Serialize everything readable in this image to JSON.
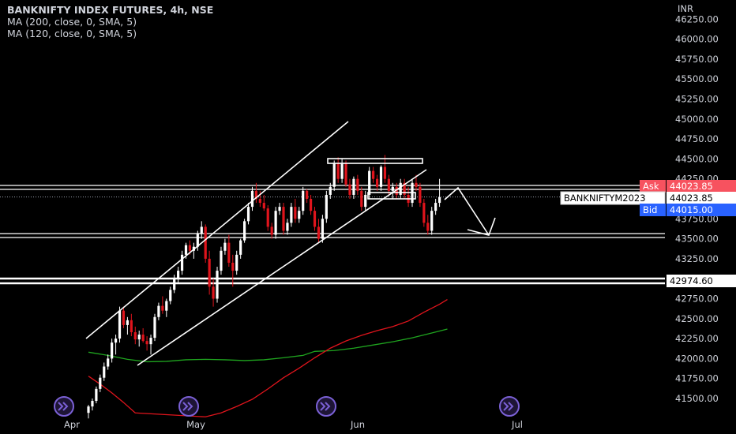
{
  "legend": {
    "title": "BANKNIFTY INDEX FUTURES, 4h, NSE",
    "ma1": "MA (200, close, 0, SMA, 5)",
    "ma2": "MA (120, close, 0, SMA, 5)"
  },
  "currency": "INR",
  "colors": {
    "background": "#000000",
    "up": "#ffffff",
    "down": "#e0141c",
    "ma200": "#1fa51f",
    "ma120": "#e0141c",
    "drawing": "#ffffff",
    "ask": "#f7525f",
    "bid": "#2962ff",
    "event": "#7b61d6"
  },
  "chart_data": {
    "type": "candlestick",
    "y_ticks": [
      "46250.00",
      "46000.00",
      "45750.00",
      "45500.00",
      "45250.00",
      "45000.00",
      "44750.00",
      "44500.00",
      "44250.00",
      "43750.00",
      "43500.00",
      "43250.00",
      "42750.00",
      "42500.00",
      "42250.00",
      "42000.00",
      "41750.00",
      "41500.00"
    ],
    "x_ticks": [
      "Apr",
      "May",
      "Jun",
      "Jul"
    ],
    "ylim": [
      41275,
      46325
    ],
    "price_tags": {
      "ask_label": "Ask",
      "ask_value": "44023.85",
      "ask_price": 44023.85,
      "symbol": "BANKNIFTYM2023",
      "last_value": "44023.85",
      "last_price": 44023.85,
      "bid_label": "Bid",
      "bid_value": "44015.00",
      "bid_price": 44015.0,
      "level_value": "42974.60",
      "level_price": 42974.6
    },
    "candles": [
      [
        41320,
        41420,
        41250,
        41400
      ],
      [
        41400,
        41500,
        41350,
        41470
      ],
      [
        41470,
        41650,
        41440,
        41620
      ],
      [
        41620,
        41800,
        41580,
        41760
      ],
      [
        41760,
        41950,
        41720,
        41900
      ],
      [
        41900,
        42050,
        41860,
        42000
      ],
      [
        42000,
        42250,
        41950,
        42200
      ],
      [
        42200,
        42300,
        42050,
        42250
      ],
      [
        42250,
        42650,
        42200,
        42600
      ],
      [
        42600,
        42650,
        42380,
        42420
      ],
      [
        42420,
        42520,
        42300,
        42480
      ],
      [
        42480,
        42560,
        42280,
        42330
      ],
      [
        42330,
        42400,
        42180,
        42240
      ],
      [
        42240,
        42350,
        42150,
        42300
      ],
      [
        42300,
        42380,
        42200,
        42220
      ],
      [
        42220,
        42280,
        42100,
        42180
      ],
      [
        42180,
        42300,
        42050,
        42260
      ],
      [
        42260,
        42560,
        42220,
        42520
      ],
      [
        42520,
        42700,
        42480,
        42660
      ],
      [
        42660,
        42780,
        42560,
        42600
      ],
      [
        42600,
        42750,
        42520,
        42720
      ],
      [
        42720,
        42900,
        42680,
        42860
      ],
      [
        42860,
        43050,
        42820,
        43000
      ],
      [
        43000,
        43150,
        42950,
        43100
      ],
      [
        43100,
        43350,
        43050,
        43300
      ],
      [
        43300,
        43450,
        43250,
        43420
      ],
      [
        43420,
        43480,
        43300,
        43350
      ],
      [
        43350,
        43450,
        43250,
        43400
      ],
      [
        43400,
        43600,
        43350,
        43560
      ],
      [
        43560,
        43720,
        43500,
        43650
      ],
      [
        43650,
        43680,
        43200,
        43250
      ],
      [
        43250,
        43350,
        42800,
        42900
      ],
      [
        42900,
        43000,
        42650,
        42750
      ],
      [
        42750,
        43150,
        42700,
        43100
      ],
      [
        43100,
        43400,
        43050,
        43350
      ],
      [
        43350,
        43500,
        43300,
        43450
      ],
      [
        43450,
        43550,
        43150,
        43200
      ],
      [
        43200,
        43300,
        42900,
        43100
      ],
      [
        43100,
        43350,
        43050,
        43300
      ],
      [
        43300,
        43500,
        43250,
        43480
      ],
      [
        43480,
        43750,
        43450,
        43720
      ],
      [
        43720,
        43950,
        43680,
        43900
      ],
      [
        43900,
        44150,
        43850,
        44100
      ],
      [
        44100,
        44200,
        43950,
        44000
      ],
      [
        44000,
        44100,
        43900,
        43950
      ],
      [
        43950,
        44050,
        43850,
        43880
      ],
      [
        43880,
        43920,
        43600,
        43650
      ],
      [
        43650,
        43700,
        43500,
        43550
      ],
      [
        43550,
        43900,
        43500,
        43850
      ],
      [
        43850,
        43950,
        43800,
        43900
      ],
      [
        43900,
        43950,
        43550,
        43600
      ],
      [
        43600,
        43750,
        43550,
        43700
      ],
      [
        43700,
        43950,
        43650,
        43900
      ],
      [
        43900,
        44000,
        43700,
        43750
      ],
      [
        43750,
        43900,
        43700,
        43850
      ],
      [
        43850,
        44150,
        43800,
        44100
      ],
      [
        44100,
        44120,
        43950,
        44000
      ],
      [
        44000,
        44050,
        43800,
        43850
      ],
      [
        43850,
        43900,
        43600,
        43650
      ],
      [
        43650,
        43750,
        43450,
        43500
      ],
      [
        43500,
        43800,
        43450,
        43750
      ],
      [
        43750,
        44100,
        43700,
        44050
      ],
      [
        44050,
        44200,
        44000,
        44150
      ],
      [
        44150,
        44480,
        44100,
        44450
      ],
      [
        44450,
        44520,
        44200,
        44250
      ],
      [
        44250,
        44500,
        44200,
        44450
      ],
      [
        44450,
        44480,
        44150,
        44180
      ],
      [
        44180,
        44250,
        44000,
        44050
      ],
      [
        44050,
        44280,
        44000,
        44250
      ],
      [
        44250,
        44300,
        44050,
        44100
      ],
      [
        44100,
        44150,
        43850,
        43900
      ],
      [
        43900,
        44100,
        43850,
        44050
      ],
      [
        44050,
        44400,
        44000,
        44350
      ],
      [
        44350,
        44400,
        44200,
        44250
      ],
      [
        44250,
        44300,
        44100,
        44150
      ],
      [
        44150,
        44420,
        44100,
        44400
      ],
      [
        44400,
        44550,
        44200,
        44250
      ],
      [
        44250,
        44300,
        44050,
        44100
      ],
      [
        44100,
        44200,
        44000,
        44150
      ],
      [
        44150,
        44200,
        44000,
        44050
      ],
      [
        44050,
        44250,
        44000,
        44200
      ],
      [
        44200,
        44250,
        44000,
        44050
      ],
      [
        44050,
        44150,
        43900,
        43950
      ],
      [
        43950,
        44250,
        43900,
        44200
      ],
      [
        44200,
        44300,
        44100,
        44150
      ],
      [
        44150,
        44200,
        43900,
        43950
      ],
      [
        43950,
        44000,
        43650,
        43700
      ],
      [
        43700,
        43800,
        43550,
        43600
      ],
      [
        43600,
        43900,
        43550,
        43850
      ],
      [
        43850,
        44000,
        43800,
        43950
      ],
      [
        43950,
        44250,
        43900,
        44020
      ]
    ],
    "ma200": [
      [
        0,
        42080
      ],
      [
        5,
        42040
      ],
      [
        10,
        41990
      ],
      [
        15,
        41960
      ],
      [
        20,
        41965
      ],
      [
        25,
        41985
      ],
      [
        30,
        41990
      ],
      [
        35,
        41985
      ],
      [
        40,
        41975
      ],
      [
        45,
        41985
      ],
      [
        50,
        42010
      ],
      [
        55,
        42040
      ],
      [
        58,
        42090
      ],
      [
        63,
        42100
      ],
      [
        68,
        42130
      ],
      [
        73,
        42170
      ],
      [
        78,
        42210
      ],
      [
        83,
        42260
      ],
      [
        88,
        42320
      ],
      [
        92,
        42370
      ]
    ],
    "ma120": [
      [
        0,
        41780
      ],
      [
        3,
        41680
      ],
      [
        6,
        41570
      ],
      [
        9,
        41450
      ],
      [
        12,
        41320
      ],
      [
        30,
        41270
      ],
      [
        34,
        41320
      ],
      [
        38,
        41400
      ],
      [
        42,
        41490
      ],
      [
        46,
        41620
      ],
      [
        50,
        41760
      ],
      [
        54,
        41880
      ],
      [
        58,
        42010
      ],
      [
        62,
        42130
      ],
      [
        66,
        42220
      ],
      [
        70,
        42290
      ],
      [
        74,
        42350
      ],
      [
        78,
        42400
      ],
      [
        82,
        42470
      ],
      [
        86,
        42580
      ],
      [
        90,
        42680
      ],
      [
        92,
        42740
      ]
    ]
  },
  "events": [
    {
      "name": "event-marker-1",
      "icon": "forward-icon"
    },
    {
      "name": "event-marker-2",
      "icon": "forward-icon"
    },
    {
      "name": "event-marker-3",
      "icon": "forward-icon"
    },
    {
      "name": "event-marker-4",
      "icon": "forward-icon"
    }
  ]
}
